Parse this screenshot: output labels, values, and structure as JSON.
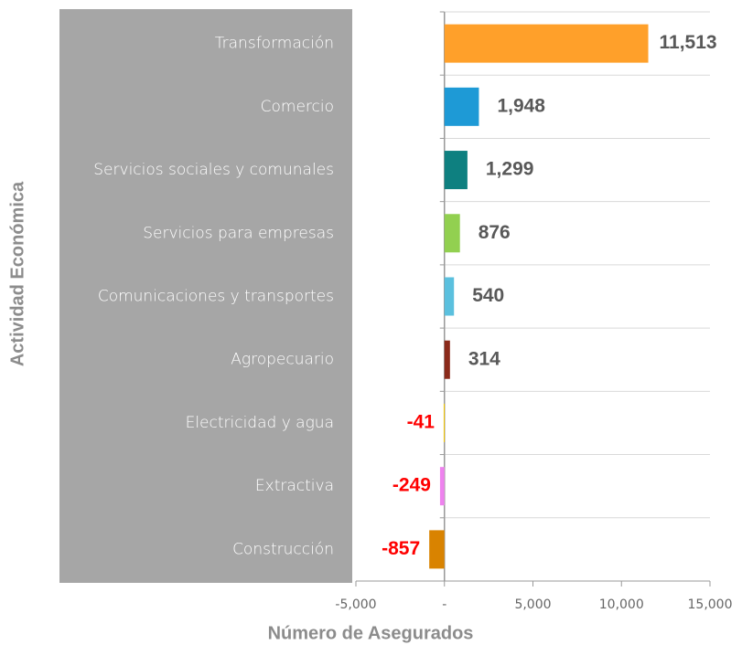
{
  "chart_data": {
    "type": "barh",
    "categories": [
      "Transformación",
      "Comercio",
      "Servicios sociales y comunales",
      "Servicios para empresas",
      "Comunicaciones y transportes",
      "Agropecuario",
      "Electricidad y agua",
      "Extractiva",
      "Construcción"
    ],
    "values": [
      11513,
      1948,
      1299,
      876,
      540,
      314,
      -41,
      -249,
      -857
    ],
    "value_labels": [
      "11,513",
      "1,948",
      "1,299",
      "876",
      "540",
      "314",
      "-41",
      "-249",
      "-857"
    ],
    "colors": [
      "#ffa02a",
      "#1e9ad6",
      "#0e8080",
      "#92d050",
      "#5bc0de",
      "#8b2a1a",
      "#f2c500",
      "#ee82ee",
      "#d98300"
    ],
    "xlim": [
      -5000,
      15000
    ],
    "xticks": [
      {
        "value": -5000,
        "label": "-5,000"
      },
      {
        "value": 0,
        "label": "-"
      },
      {
        "value": 5000,
        "label": "5,000"
      },
      {
        "value": 10000,
        "label": "10,000"
      },
      {
        "value": 15000,
        "label": "15,000"
      }
    ],
    "x_label": "Número de Asegurados",
    "y_label": "Actividad Económica",
    "grid": true
  }
}
